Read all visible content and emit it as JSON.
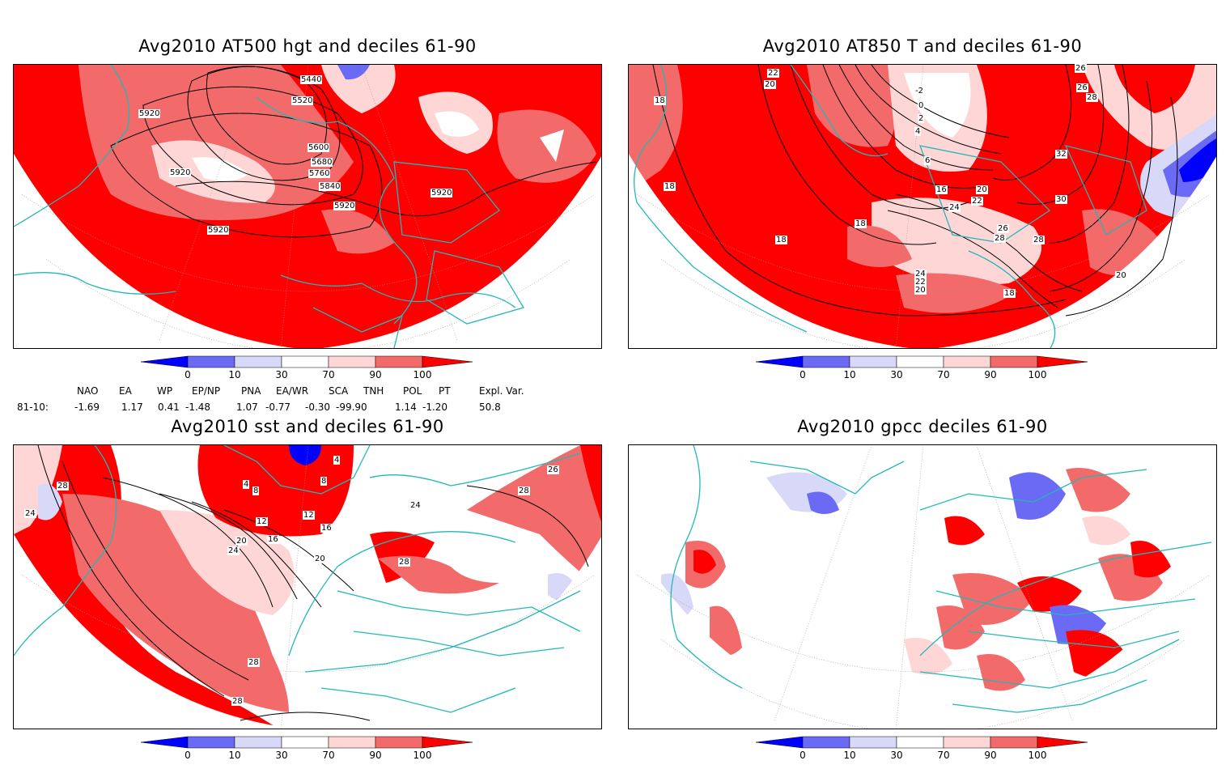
{
  "panels": [
    {
      "title": "Avg2010 AT500 hgt and deciles 61-90",
      "contour_labels": [
        "5440",
        "5520",
        "5600",
        "5680",
        "5760",
        "5840",
        "5920",
        "5920",
        "5920",
        "5920",
        "5920"
      ]
    },
    {
      "title": "Avg2010 AT850 T and deciles 61-90",
      "contour_labels": [
        "22",
        "20",
        "-2",
        "0",
        "2",
        "4",
        "6",
        "16",
        "18",
        "18",
        "18",
        "18",
        "20",
        "22",
        "24",
        "26",
        "28",
        "30",
        "32",
        "26",
        "26",
        "28",
        "28",
        "24",
        "22",
        "20",
        "18",
        "20"
      ]
    },
    {
      "title": "Avg2010 sst and deciles 61-90",
      "contour_labels": [
        "28",
        "24",
        "4",
        "8",
        "12",
        "12",
        "16",
        "20",
        "24",
        "28",
        "28",
        "28",
        "24",
        "28",
        "26",
        "20",
        "16",
        "8",
        "4"
      ]
    },
    {
      "title": "Avg2010 gpcc deciles 61-90",
      "contour_labels": []
    }
  ],
  "colorbar": {
    "ticks": [
      "0",
      "10",
      "30",
      "70",
      "90",
      "100"
    ],
    "colors": {
      "below_0": "#0000ff",
      "0_10": "#6a6af5",
      "10_30": "#d8d8f8",
      "30_70": "#ffffff",
      "70_90": "#fed6d6",
      "90_100": "#f26a6a",
      "above_100": "#fe0000"
    }
  },
  "indices": {
    "headers": [
      "NAO",
      "EA",
      "WP",
      "EP/NP",
      "PNA",
      "EA/WR",
      "SCA",
      "TNH",
      "POL",
      "PT",
      "Expl. Var."
    ],
    "row_label": "81-10:",
    "values": [
      "-1.69",
      "1.17",
      "0.41",
      "-1.48",
      "1.07",
      "-0.77",
      "-0.30",
      "-99.90",
      "1.14",
      "-1.20",
      "50.8"
    ]
  },
  "colors": {
    "coastline": "#22b8b8",
    "contour": "#000000",
    "strong_red": "#fe0000",
    "mid_red": "#f26a6a",
    "light_red": "#fed6d6",
    "mid_blue": "#6a6af5",
    "strong_blue": "#0000ff",
    "light_blue": "#d8d8f8"
  }
}
